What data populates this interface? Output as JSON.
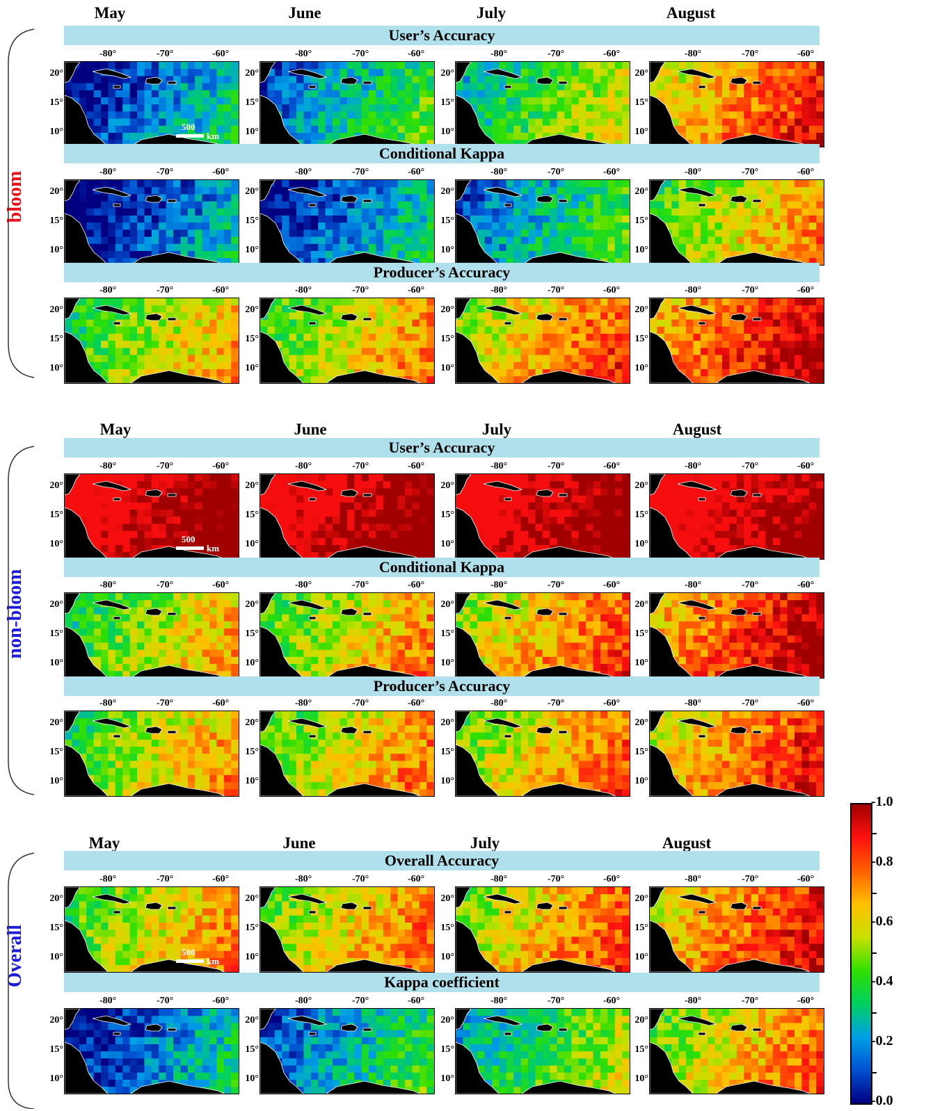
{
  "sections": [
    {
      "label": "bloom",
      "label_color": "#e8101a",
      "months": [
        "May",
        "June",
        "July",
        "August"
      ],
      "rows": [
        {
          "metric": "User’s Accuracy",
          "level": [
            0.18,
            0.3,
            0.45,
            0.75
          ]
        },
        {
          "metric": "Conditional Kappa",
          "level": [
            0.12,
            0.18,
            0.3,
            0.6
          ]
        },
        {
          "metric": "Producer’s Accuracy",
          "level": [
            0.55,
            0.6,
            0.7,
            0.85
          ]
        }
      ]
    },
    {
      "label": "non-bloom",
      "label_color": "#1b1bd8",
      "months": [
        "May",
        "June",
        "July",
        "August"
      ],
      "rows": [
        {
          "metric": "User’s Accuracy",
          "level": [
            0.96,
            0.97,
            0.95,
            0.93
          ]
        },
        {
          "metric": "Conditional Kappa",
          "level": [
            0.55,
            0.6,
            0.7,
            0.85
          ]
        },
        {
          "metric": "Producer’s Accuracy",
          "level": [
            0.58,
            0.62,
            0.66,
            0.76
          ]
        }
      ]
    },
    {
      "label": "Overall",
      "label_color": "#1b1bd8",
      "months": [
        "May",
        "June",
        "July",
        "August"
      ],
      "rows": [
        {
          "metric": "Overall Accuracy",
          "level": [
            0.6,
            0.64,
            0.68,
            0.78
          ]
        },
        {
          "metric": "Kappa coefficient",
          "level": [
            0.18,
            0.28,
            0.42,
            0.65
          ]
        }
      ]
    }
  ],
  "axes": {
    "lon_labels": [
      "-80°",
      "-70°",
      "-60°"
    ],
    "lat_labels": [
      "20°",
      "15°",
      "10°"
    ]
  },
  "scalebar": {
    "value": "500",
    "unit": "km"
  },
  "colorbar": {
    "ticks": [
      "1.0",
      "0.8",
      "0.6",
      "0.4",
      "0.2",
      "0.0"
    ],
    "colors": [
      "#000080",
      "#0050d0",
      "#00a0e8",
      "#00d060",
      "#30e000",
      "#c8e000",
      "#ffc000",
      "#ff6000",
      "#ff1010",
      "#a00000"
    ]
  }
}
